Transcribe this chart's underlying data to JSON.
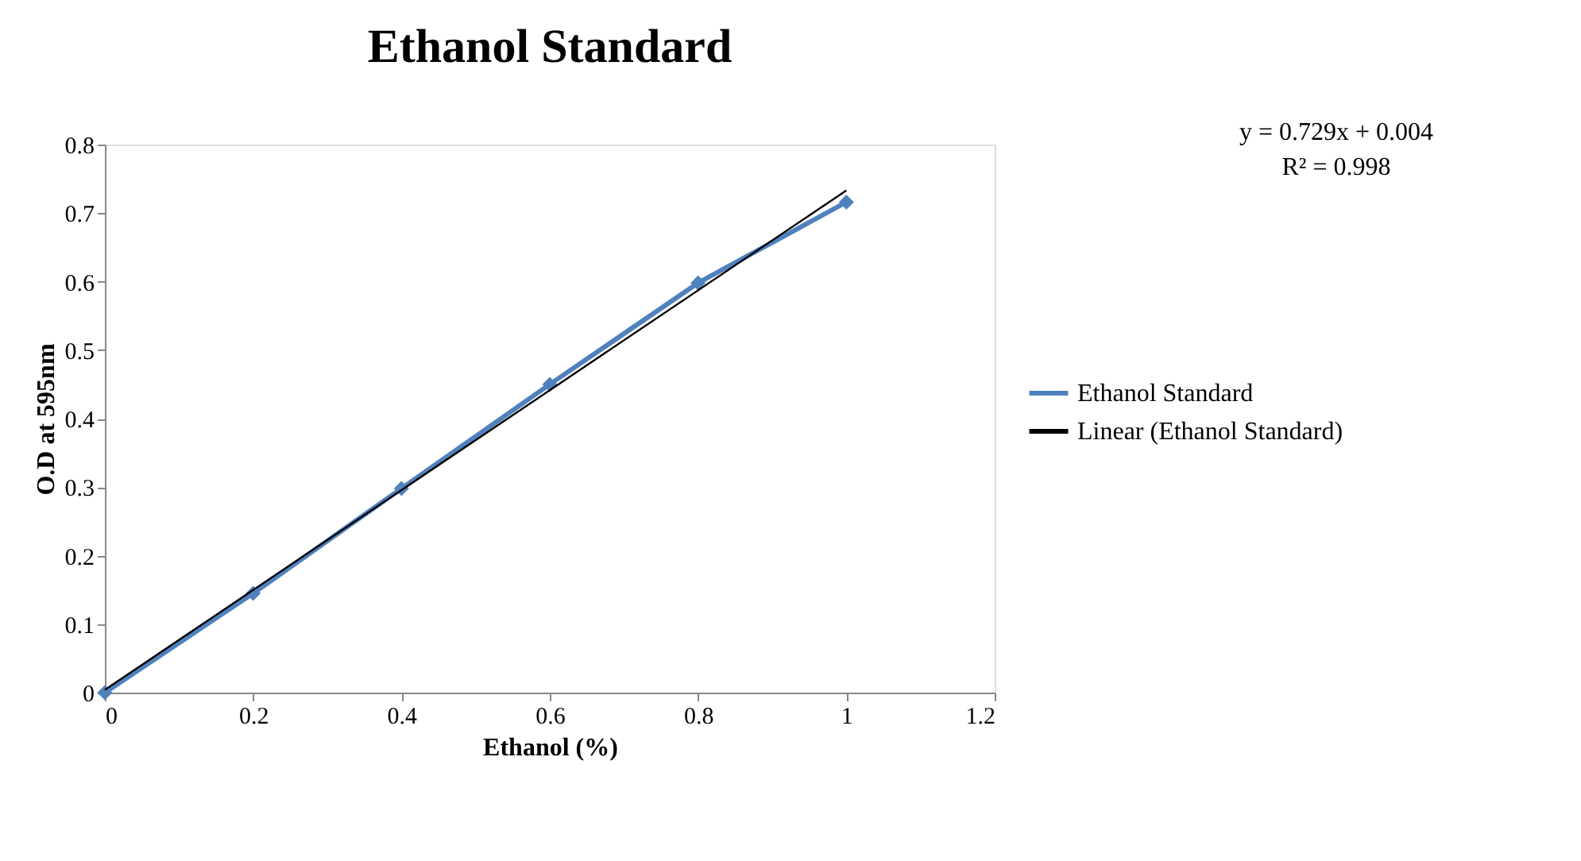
{
  "chart_data": {
    "type": "line",
    "title": "Ethanol Standard",
    "xlabel": "Ethanol (%)",
    "ylabel": "O.D at 595nm",
    "x": [
      0,
      0.2,
      0.4,
      0.6,
      0.8,
      1
    ],
    "series": [
      {
        "name": "Ethanol Standard",
        "color": "#4f81bd",
        "values": [
          0,
          0.145,
          0.298,
          0.45,
          0.598,
          0.716
        ],
        "marker": "diamond"
      },
      {
        "name": "Linear (Ethanol Standard)",
        "color": "#000000",
        "type": "line",
        "x": [
          0,
          1
        ],
        "values": [
          0.004,
          0.733
        ],
        "marker": "none"
      }
    ],
    "annotations": [
      "y = 0.729x + 0.004",
      "R² = 0.998"
    ],
    "xlim": [
      0,
      1.2
    ],
    "xticks": [
      0,
      0.2,
      0.4,
      0.6,
      0.8,
      1,
      1.2
    ],
    "ylim": [
      0,
      0.8
    ],
    "yticks": [
      0,
      0.1,
      0.2,
      0.3,
      0.4,
      0.5,
      0.6,
      0.7,
      0.8
    ],
    "grid": false,
    "legend": "right"
  }
}
